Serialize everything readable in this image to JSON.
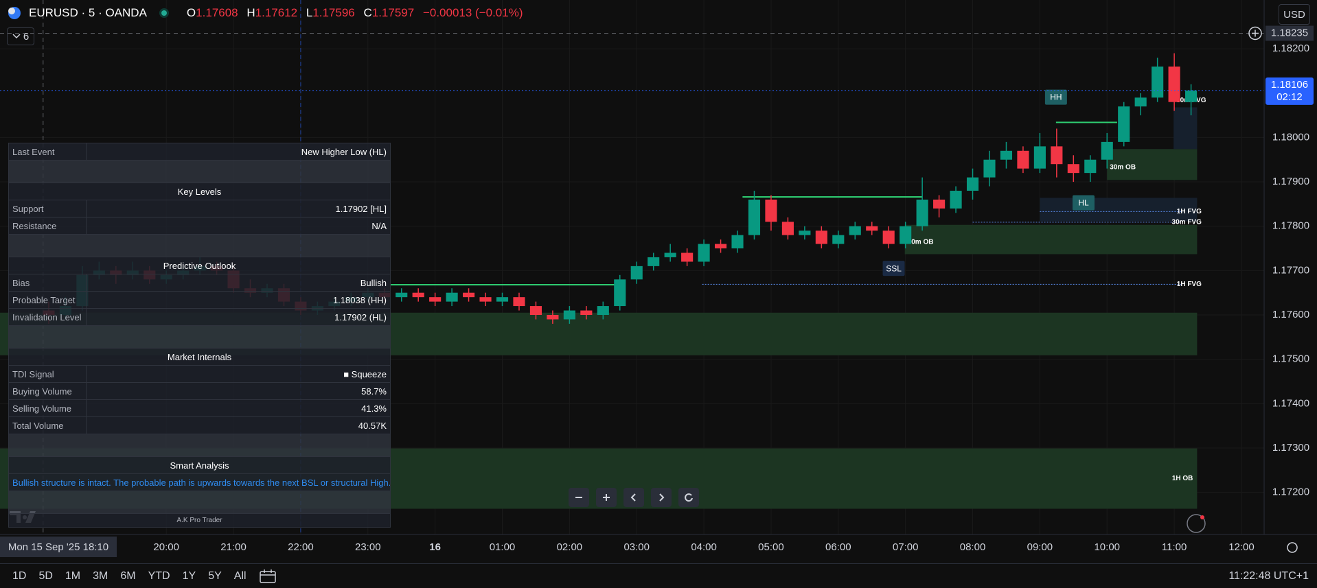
{
  "header": {
    "symbol": "EURUSD · 5 · OANDA",
    "ohlc": [
      {
        "label": "O",
        "value": "1.17608"
      },
      {
        "label": "H",
        "value": "1.17612"
      },
      {
        "label": "L",
        "value": "1.17596"
      },
      {
        "label": "C",
        "value": "1.17597"
      }
    ],
    "change": "−0.00013 (−0.01%)",
    "indicator_count": "6",
    "currency": "USD"
  },
  "panel": {
    "last_event": {
      "label": "Last Event",
      "value": "New Higher Low (HL)"
    },
    "key_levels": {
      "title": "Key Levels",
      "rows": [
        {
          "label": "Support",
          "value": "1.17902 [HL]"
        },
        {
          "label": "Resistance",
          "value": "N/A"
        }
      ]
    },
    "predictive_outlook": {
      "title": "Predictive Outlook",
      "rows": [
        {
          "label": "Bias",
          "value": "Bullish"
        },
        {
          "label": "Probable Target",
          "value": "1.18038 (HH)"
        },
        {
          "label": "Invalidation Level",
          "value": "1.17902 (HL)"
        }
      ]
    },
    "market_internals": {
      "title": "Market Internals",
      "rows": [
        {
          "label": "TDI Signal",
          "value": "■ Squeeze"
        },
        {
          "label": "Buying Volume",
          "value": "58.7%"
        },
        {
          "label": "Selling Volume",
          "value": "41.3%"
        },
        {
          "label": "Total Volume",
          "value": "40.57K"
        }
      ]
    },
    "smart_analysis": {
      "title": "Smart Analysis",
      "text": "Bullish structure is intact. The probable path is upwards towards the next BSL or structural High."
    },
    "footer": "A.K Pro Trader"
  },
  "chart_data": {
    "type": "candlestick",
    "up_color": "#089981",
    "down_color": "#f23645",
    "grid": true,
    "xlim": [
      17.525,
      36.3375
    ],
    "ylim": [
      1.17105,
      1.1831
    ],
    "xticks": [
      {
        "value": 20,
        "label": "20:00"
      },
      {
        "value": 21,
        "label": "21:00"
      },
      {
        "value": 22,
        "label": "22:00"
      },
      {
        "value": 23,
        "label": "23:00"
      },
      {
        "value": 24,
        "label": "16"
      },
      {
        "value": 25,
        "label": "01:00"
      },
      {
        "value": 26,
        "label": "02:00"
      },
      {
        "value": 27,
        "label": "03:00"
      },
      {
        "value": 28,
        "label": "04:00"
      },
      {
        "value": 29,
        "label": "05:00"
      },
      {
        "value": 30,
        "label": "06:00"
      },
      {
        "value": 31,
        "label": "07:00"
      },
      {
        "value": 32,
        "label": "08:00"
      },
      {
        "value": 33,
        "label": "09:00"
      },
      {
        "value": 34,
        "label": "10:00"
      },
      {
        "value": 35,
        "label": "11:00"
      },
      {
        "value": 36,
        "label": "12:00"
      }
    ],
    "yticks": [
      {
        "value": 1.182,
        "label": "1.18200"
      },
      {
        "value": 1.18,
        "label": "1.18000"
      },
      {
        "value": 1.179,
        "label": "1.17900"
      },
      {
        "value": 1.178,
        "label": "1.17800"
      },
      {
        "value": 1.177,
        "label": "1.17700"
      },
      {
        "value": 1.176,
        "label": "1.17600"
      },
      {
        "value": 1.175,
        "label": "1.17500"
      },
      {
        "value": 1.174,
        "label": "1.17400"
      },
      {
        "value": 1.173,
        "label": "1.17300"
      },
      {
        "value": 1.172,
        "label": "1.17200"
      }
    ],
    "x": [
      18.25,
      18.5,
      18.75,
      19,
      19.25,
      19.5,
      19.75,
      20,
      20.25,
      20.5,
      20.75,
      21,
      21.25,
      21.5,
      21.75,
      22,
      22.25,
      22.5,
      22.75,
      23,
      23.25,
      23.5,
      23.75,
      24,
      24.25,
      24.5,
      24.75,
      25,
      25.25,
      25.5,
      25.75,
      26,
      26.25,
      26.5,
      26.75,
      27,
      27.25,
      27.5,
      27.75,
      28,
      28.25,
      28.5,
      28.75,
      29,
      29.25,
      29.5,
      29.75,
      30,
      30.25,
      30.5,
      30.75,
      31,
      31.25,
      31.5,
      31.75,
      32,
      32.25,
      32.5,
      32.75,
      33,
      33.25,
      33.5,
      33.75,
      34,
      34.25,
      34.5,
      34.75,
      35,
      35.25
    ],
    "open": [
      1.1761,
      1.176,
      1.1762,
      1.1769,
      1.177,
      1.1769,
      1.177,
      1.1768,
      1.1769,
      1.177,
      1.1771,
      1.177,
      1.1766,
      1.1765,
      1.1766,
      1.1763,
      1.1761,
      1.1762,
      1.1763,
      1.1764,
      1.1765,
      1.1764,
      1.1765,
      1.1764,
      1.1763,
      1.1765,
      1.1764,
      1.1763,
      1.1764,
      1.1762,
      1.176,
      1.1759,
      1.1761,
      1.176,
      1.1762,
      1.1768,
      1.1771,
      1.1773,
      1.1774,
      1.1772,
      1.1776,
      1.1775,
      1.1778,
      1.1786,
      1.1781,
      1.1778,
      1.1779,
      1.1776,
      1.1778,
      1.178,
      1.1779,
      1.1776,
      1.178,
      1.1786,
      1.1784,
      1.1788,
      1.1791,
      1.1795,
      1.1797,
      1.1793,
      1.1798,
      1.1794,
      1.1792,
      1.1795,
      1.1799,
      1.1807,
      1.1809,
      1.1816,
      1.1808
    ],
    "high": [
      1.1763,
      1.1764,
      1.1771,
      1.1772,
      1.1771,
      1.1772,
      1.1771,
      1.177,
      1.1771,
      1.1773,
      1.1772,
      1.1771,
      1.1768,
      1.1767,
      1.1767,
      1.1764,
      1.1763,
      1.1764,
      1.1765,
      1.1766,
      1.1766,
      1.1766,
      1.1766,
      1.1765,
      1.1766,
      1.1766,
      1.1765,
      1.1765,
      1.1765,
      1.1763,
      1.1761,
      1.1762,
      1.1762,
      1.1763,
      1.1769,
      1.1772,
      1.1774,
      1.1776,
      1.1775,
      1.1777,
      1.1777,
      1.1779,
      1.1788,
      1.1787,
      1.1782,
      1.178,
      1.178,
      1.1779,
      1.1781,
      1.1781,
      1.178,
      1.1781,
      1.1791,
      1.1787,
      1.1789,
      1.1793,
      1.1797,
      1.1799,
      1.1798,
      1.1801,
      1.1802,
      1.1796,
      1.1796,
      1.1801,
      1.1808,
      1.181,
      1.1818,
      1.1819,
      1.1812
    ],
    "low": [
      1.1758,
      1.1759,
      1.1761,
      1.1768,
      1.1767,
      1.1768,
      1.1767,
      1.1767,
      1.1768,
      1.1769,
      1.1769,
      1.1765,
      1.1764,
      1.1764,
      1.1762,
      1.176,
      1.176,
      1.1761,
      1.1762,
      1.1763,
      1.1763,
      1.1763,
      1.1763,
      1.1762,
      1.1762,
      1.1763,
      1.1762,
      1.1762,
      1.1761,
      1.1759,
      1.1758,
      1.1758,
      1.1759,
      1.1759,
      1.1761,
      1.1767,
      1.177,
      1.1772,
      1.1771,
      1.1771,
      1.1774,
      1.1774,
      1.1777,
      1.1779,
      1.1777,
      1.1777,
      1.1775,
      1.1775,
      1.1777,
      1.1778,
      1.1775,
      1.1775,
      1.1779,
      1.1782,
      1.1783,
      1.1786,
      1.1789,
      1.1793,
      1.1792,
      1.1792,
      1.1791,
      1.179,
      1.179,
      1.1793,
      1.1798,
      1.1805,
      1.1808,
      1.1806,
      1.1805
    ],
    "close": [
      1.176,
      1.1762,
      1.1769,
      1.177,
      1.1769,
      1.177,
      1.1768,
      1.1769,
      1.177,
      1.1771,
      1.177,
      1.1766,
      1.1765,
      1.1766,
      1.1763,
      1.1761,
      1.1762,
      1.1763,
      1.1764,
      1.1765,
      1.1764,
      1.1765,
      1.1764,
      1.1763,
      1.1765,
      1.1764,
      1.1763,
      1.1764,
      1.1762,
      1.176,
      1.1759,
      1.1761,
      1.176,
      1.1762,
      1.1768,
      1.1771,
      1.1773,
      1.1774,
      1.1772,
      1.1776,
      1.1775,
      1.1778,
      1.1786,
      1.1781,
      1.1778,
      1.1779,
      1.1776,
      1.1778,
      1.178,
      1.1779,
      1.1776,
      1.178,
      1.1786,
      1.1784,
      1.1788,
      1.1791,
      1.1795,
      1.1797,
      1.1793,
      1.1798,
      1.1794,
      1.1792,
      1.1795,
      1.1799,
      1.1807,
      1.1809,
      1.1816,
      1.1808,
      1.18106
    ],
    "zones": [
      {
        "top": 1.17605,
        "bottom": 1.17509,
        "start": 17.525,
        "end": 35.34,
        "color": "#1c3522"
      },
      {
        "label": "1H OB",
        "top": 1.17299,
        "bottom": 1.17163,
        "start": 17.525,
        "end": 35.34,
        "color": "#1c3522"
      },
      {
        "label": "30m OB",
        "top": 1.17803,
        "bottom": 1.17737,
        "start": 30.99,
        "end": 35.34,
        "color": "#1c3522"
      },
      {
        "label": "30m OB",
        "top": 1.17974,
        "bottom": 1.17904,
        "start": 34.0,
        "end": 35.34,
        "color": "#1c3522"
      },
      {
        "label": "30m FVG",
        "top": 1.18068,
        "bottom": 1.17974,
        "start": 34.99,
        "end": 35.34,
        "color": "#16202d"
      },
      {
        "top": 1.17864,
        "bottom": 1.17811,
        "start": 33.0,
        "end": 35.34,
        "color": "#16202d"
      }
    ],
    "levels": [
      {
        "price": 1.17668,
        "start": 23.34,
        "end": 26.75,
        "color": "#2ecc71"
      },
      {
        "price": 1.17866,
        "start": 28.575,
        "end": 31.25,
        "color": "#2ecc71"
      },
      {
        "price": 1.18034,
        "start": 33.24,
        "end": 34.15,
        "color": "#2ecc71"
      }
    ],
    "fvg_lines": [
      {
        "label": "1H FVG",
        "price": 1.17669,
        "start": 27.975,
        "end": 35.1
      },
      {
        "label": "30m FVG",
        "price": 1.17809,
        "start": 32.0,
        "end": 35.1
      },
      {
        "label": "1H FVG",
        "price": 1.17833,
        "start": 33.0,
        "end": 35.1
      }
    ],
    "markers": [
      {
        "label": "HH",
        "price": 1.18091,
        "time": 33.24,
        "color": "#1e5f63"
      },
      {
        "label": "HL",
        "price": 1.17853,
        "time": 33.65,
        "color": "#1e5f63"
      },
      {
        "label": "SSL",
        "price": 1.17705,
        "time": 30.825,
        "color": "#1a2a44"
      }
    ],
    "session_breaks": [
      22
    ],
    "crosshair": {
      "price": {
        "value": 1.18235,
        "label": "1.18235"
      },
      "time": {
        "value": 18.1667,
        "label": "Mon 15 Sep '25 18:10"
      }
    },
    "last_price": {
      "value": 1.18106,
      "label": "1.18106",
      "countdown": "02:12"
    }
  },
  "toolbar": {
    "ranges": [
      "1D",
      "5D",
      "1M",
      "3M",
      "6M",
      "YTD",
      "1Y",
      "5Y",
      "All"
    ],
    "clock": "11:22:48 UTC+1"
  }
}
